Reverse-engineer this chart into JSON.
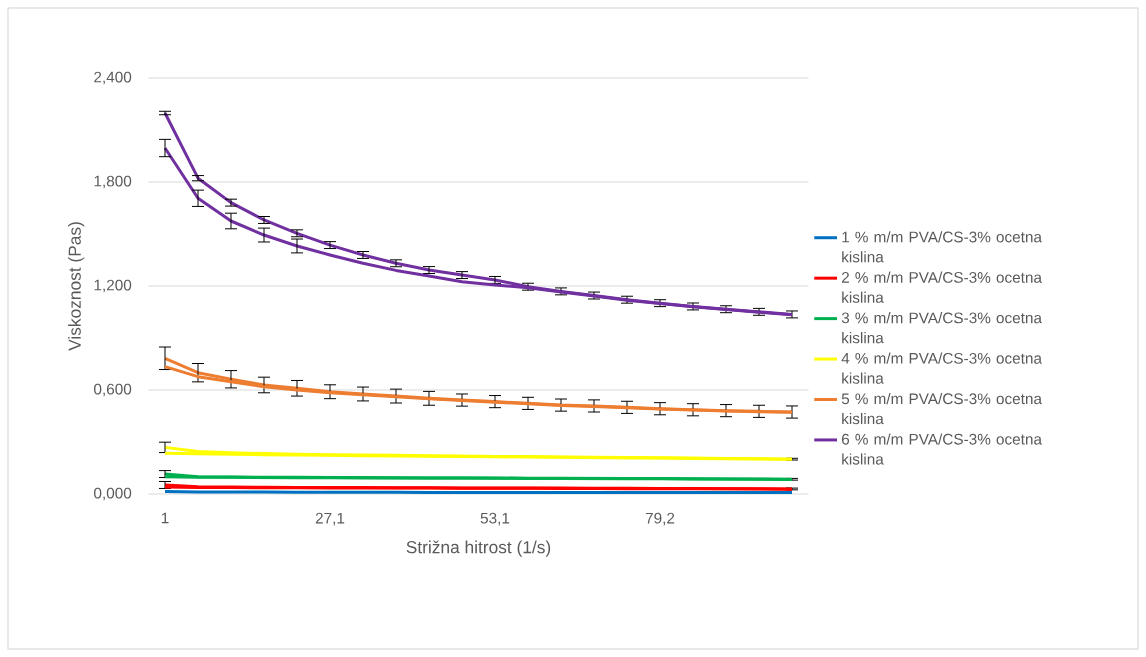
{
  "chart_data": {
    "type": "line",
    "xlabel": "Strižna hitrost (1/s)",
    "ylabel": "Viskoznost (Pas)",
    "categories": [
      "1",
      null,
      null,
      null,
      null,
      "27,1",
      null,
      null,
      null,
      null,
      "53,1",
      null,
      null,
      null,
      null,
      "79,2",
      null,
      null,
      null,
      null
    ],
    "ylim": [
      0,
      2.4
    ],
    "yticks": [
      {
        "value": 0,
        "label": "0,000"
      },
      {
        "value": 0.6,
        "label": "0,600"
      },
      {
        "value": 1.2,
        "label": "1,200"
      },
      {
        "value": 1.8,
        "label": "1,800"
      },
      {
        "value": 2.4,
        "label": "2,400"
      }
    ],
    "grid": "y",
    "legend": "right",
    "marker": "none",
    "line_style": "solid",
    "series": [
      {
        "name": "1 % m/m PVA/CS-3% ocetna kislina",
        "color": "#0070c0",
        "values": [
          0.015,
          0.012,
          0.011,
          0.011,
          0.01,
          0.01,
          0.01,
          0.01,
          0.009,
          0.009,
          0.009,
          0.009,
          0.009,
          0.009,
          0.008,
          0.008,
          0.008,
          0.008,
          0.008,
          0.008
        ]
      },
      {
        "name": "2 % m/m PVA/CS-3% ocetna kislina",
        "color": "#ff0000",
        "values": [
          0.052,
          0.042,
          0.04,
          0.039,
          0.038,
          0.037,
          0.037,
          0.036,
          0.036,
          0.035,
          0.035,
          0.034,
          0.034,
          0.033,
          0.033,
          0.032,
          0.032,
          0.031,
          0.03,
          0.029
        ],
        "errors": [
          0.02,
          null,
          null,
          null,
          null,
          null,
          null,
          null,
          null,
          null,
          null,
          null,
          null,
          null,
          null,
          null,
          null,
          null,
          null,
          0.005
        ]
      },
      {
        "color": "#ff0000",
        "values": [
          0.04,
          0.038,
          0.037,
          0.036,
          0.036,
          0.035,
          0.035,
          0.034,
          0.034,
          0.033,
          0.033,
          0.033,
          0.032,
          0.032,
          0.031,
          0.031,
          0.03,
          0.03,
          0.029,
          0.028
        ]
      },
      {
        "name": "3 % m/m PVA/CS-3% ocetna kislina",
        "color": "#00b050",
        "values": [
          0.115,
          0.1,
          0.098,
          0.097,
          0.096,
          0.095,
          0.095,
          0.094,
          0.093,
          0.093,
          0.092,
          0.091,
          0.091,
          0.09,
          0.089,
          0.089,
          0.088,
          0.087,
          0.086,
          0.085
        ],
        "errors": [
          0.02,
          null,
          null,
          null,
          null,
          null,
          null,
          null,
          null,
          null,
          null,
          null,
          null,
          null,
          null,
          null,
          null,
          null,
          null,
          0.005
        ]
      },
      {
        "color": "#00b050",
        "values": [
          0.1,
          0.097,
          0.096,
          0.095,
          0.094,
          0.094,
          0.093,
          0.093,
          0.092,
          0.092,
          0.091,
          0.09,
          0.09,
          0.089,
          0.088,
          0.088,
          0.087,
          0.086,
          0.085,
          0.084
        ]
      },
      {
        "name": "4 % m/m PVA/CS-3% ocetna kislina",
        "color": "#ffff00",
        "values": [
          0.269,
          0.245,
          0.238,
          0.233,
          0.23,
          0.227,
          0.225,
          0.223,
          0.221,
          0.219,
          0.217,
          0.216,
          0.214,
          0.212,
          0.21,
          0.209,
          0.207,
          0.205,
          0.203,
          0.201
        ],
        "errors": [
          0.03,
          null,
          null,
          null,
          null,
          null,
          null,
          null,
          null,
          null,
          null,
          null,
          null,
          null,
          null,
          null,
          null,
          null,
          null,
          0.005
        ]
      },
      {
        "color": "#ffff00",
        "values": [
          0.235,
          0.232,
          0.229,
          0.227,
          0.225,
          0.223,
          0.221,
          0.219,
          0.218,
          0.216,
          0.215,
          0.213,
          0.212,
          0.21,
          0.208,
          0.207,
          0.205,
          0.203,
          0.202,
          0.2
        ]
      },
      {
        "name": "5 % m/m PVA/CS-3% ocetna kislina",
        "color": "#ed7d31",
        "values": [
          0.783,
          0.7,
          0.662,
          0.629,
          0.61,
          0.59,
          0.577,
          0.565,
          0.552,
          0.542,
          0.533,
          0.523,
          0.513,
          0.508,
          0.5,
          0.492,
          0.486,
          0.481,
          0.477,
          0.473
        ],
        "errors": [
          0.065,
          0.053,
          0.05,
          0.045,
          0.045,
          0.04,
          0.04,
          0.04,
          0.04,
          0.035,
          0.035,
          0.035,
          0.035,
          0.035,
          0.035,
          0.035,
          0.035,
          0.035,
          0.035,
          0.035
        ]
      },
      {
        "color": "#ed7d31",
        "values": [
          0.735,
          0.677,
          0.648,
          0.619,
          0.6,
          0.584,
          0.572,
          0.561,
          0.549,
          0.539,
          0.53,
          0.52,
          0.511,
          0.505,
          0.497,
          0.49,
          0.484,
          0.479,
          0.475,
          0.471
        ]
      },
      {
        "name": "6 % m/m PVA/CS-3% ocetna kislina",
        "color": "#7030a0",
        "values": [
          2.198,
          1.822,
          1.681,
          1.581,
          1.504,
          1.436,
          1.379,
          1.331,
          1.292,
          1.263,
          1.235,
          1.196,
          1.169,
          1.145,
          1.121,
          1.101,
          1.082,
          1.066,
          1.051,
          1.036
        ],
        "errors": [
          0.01,
          0.015,
          0.02,
          0.02,
          0.02,
          0.02,
          0.02,
          0.02,
          0.02,
          0.02,
          0.02,
          0.02,
          0.02,
          0.02,
          0.02,
          0.02,
          0.02,
          0.02,
          0.02,
          0.02
        ]
      },
      {
        "color": "#7030a0",
        "values": [
          1.996,
          1.706,
          1.575,
          1.494,
          1.431,
          1.379,
          1.331,
          1.29,
          1.258,
          1.225,
          1.206,
          1.19,
          1.165,
          1.142,
          1.118,
          1.099,
          1.08,
          1.064,
          1.049,
          1.034
        ],
        "errors": [
          0.05,
          0.047,
          0.045,
          0.04,
          0.04,
          null,
          null,
          null,
          null,
          null,
          null,
          null,
          null,
          null,
          null,
          null,
          null,
          null,
          null,
          null
        ]
      }
    ]
  }
}
